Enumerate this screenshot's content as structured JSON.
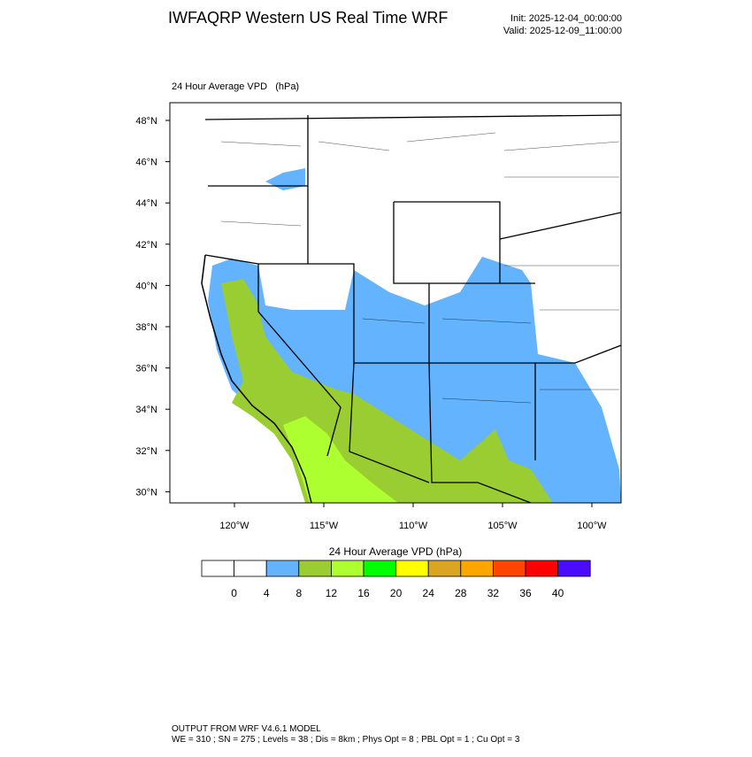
{
  "header": {
    "title": "IWFAQRP Western US Real Time WRF",
    "init": "Init: 2025-12-04_00:00:00",
    "valid": "Valid: 2025-12-09_11:00:00"
  },
  "map": {
    "label": "24 Hour Average VPD   (hPa)",
    "lat_labels": [
      "48°N",
      "46°N",
      "44°N",
      "42°N",
      "40°N",
      "38°N",
      "36°N",
      "34°N",
      "32°N",
      "30°N"
    ],
    "lon_labels": [
      "120°W",
      "115°W",
      "110°W",
      "105°W",
      "100°W"
    ]
  },
  "colorbar": {
    "title": "24 Hour Average VPD  (hPa)",
    "labels": [
      0,
      4,
      8,
      12,
      16,
      20,
      24,
      28,
      32,
      36,
      40
    ],
    "colors": [
      "#ffffff",
      "#ffffff",
      "#63b3ff",
      "#9acd32",
      "#adff2f",
      "#00ff00",
      "#ffff00",
      "#daa520",
      "#ffa500",
      "#ff4500",
      "#ff0000",
      "#4b0bff"
    ]
  },
  "footer": {
    "line1": "OUTPUT FROM WRF V4.6.1 MODEL",
    "line2": "WE = 310 ; SN = 275 ; Levels = 38 ; Dis = 8km ; Phys Opt = 8 ; PBL Opt = 1 ; Cu Opt = 3"
  }
}
